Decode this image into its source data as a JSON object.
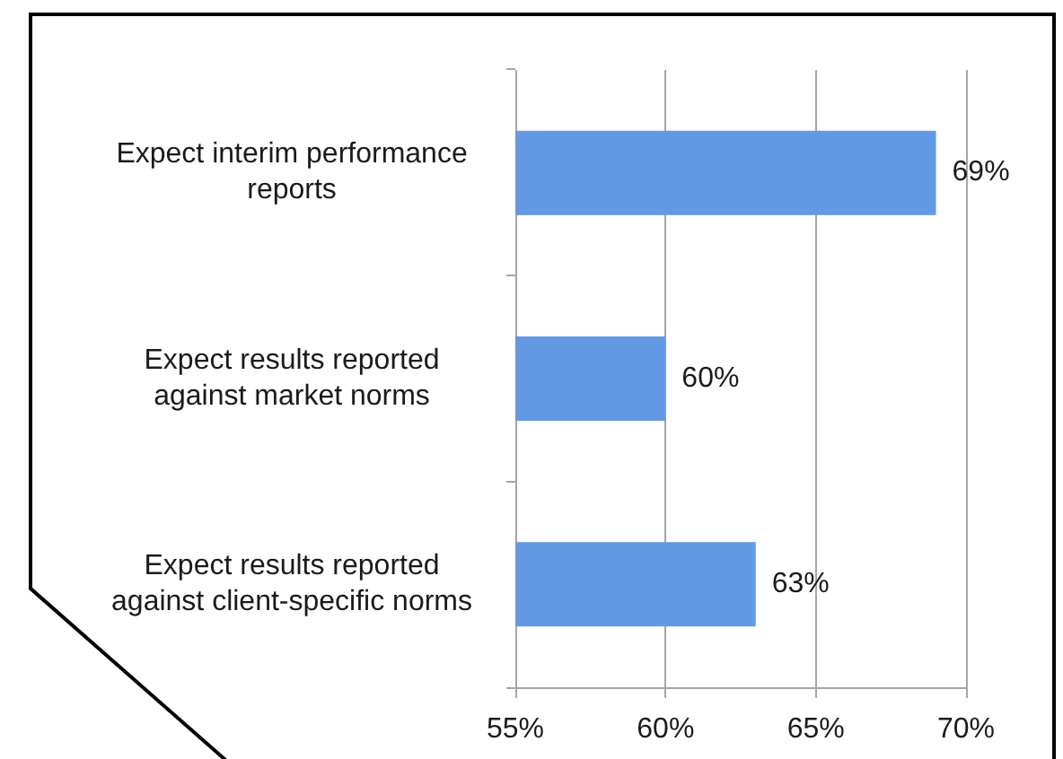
{
  "chart_data": {
    "type": "bar",
    "orientation": "horizontal",
    "categories": [
      "Expect interim performance reports",
      "Expect results reported against market norms",
      "Expect results reported against client-specific norms"
    ],
    "values": [
      69,
      60,
      63
    ],
    "color": "#6399e3",
    "value_labels": [
      "69%",
      "60%",
      "63%"
    ],
    "xlim": [
      55,
      70
    ],
    "xticks": [
      {
        "value": 55,
        "label": "55%"
      },
      {
        "value": 60,
        "label": "60%"
      },
      {
        "value": 65,
        "label": "65%"
      },
      {
        "value": 70,
        "label": "70%"
      }
    ],
    "grid": "x"
  }
}
